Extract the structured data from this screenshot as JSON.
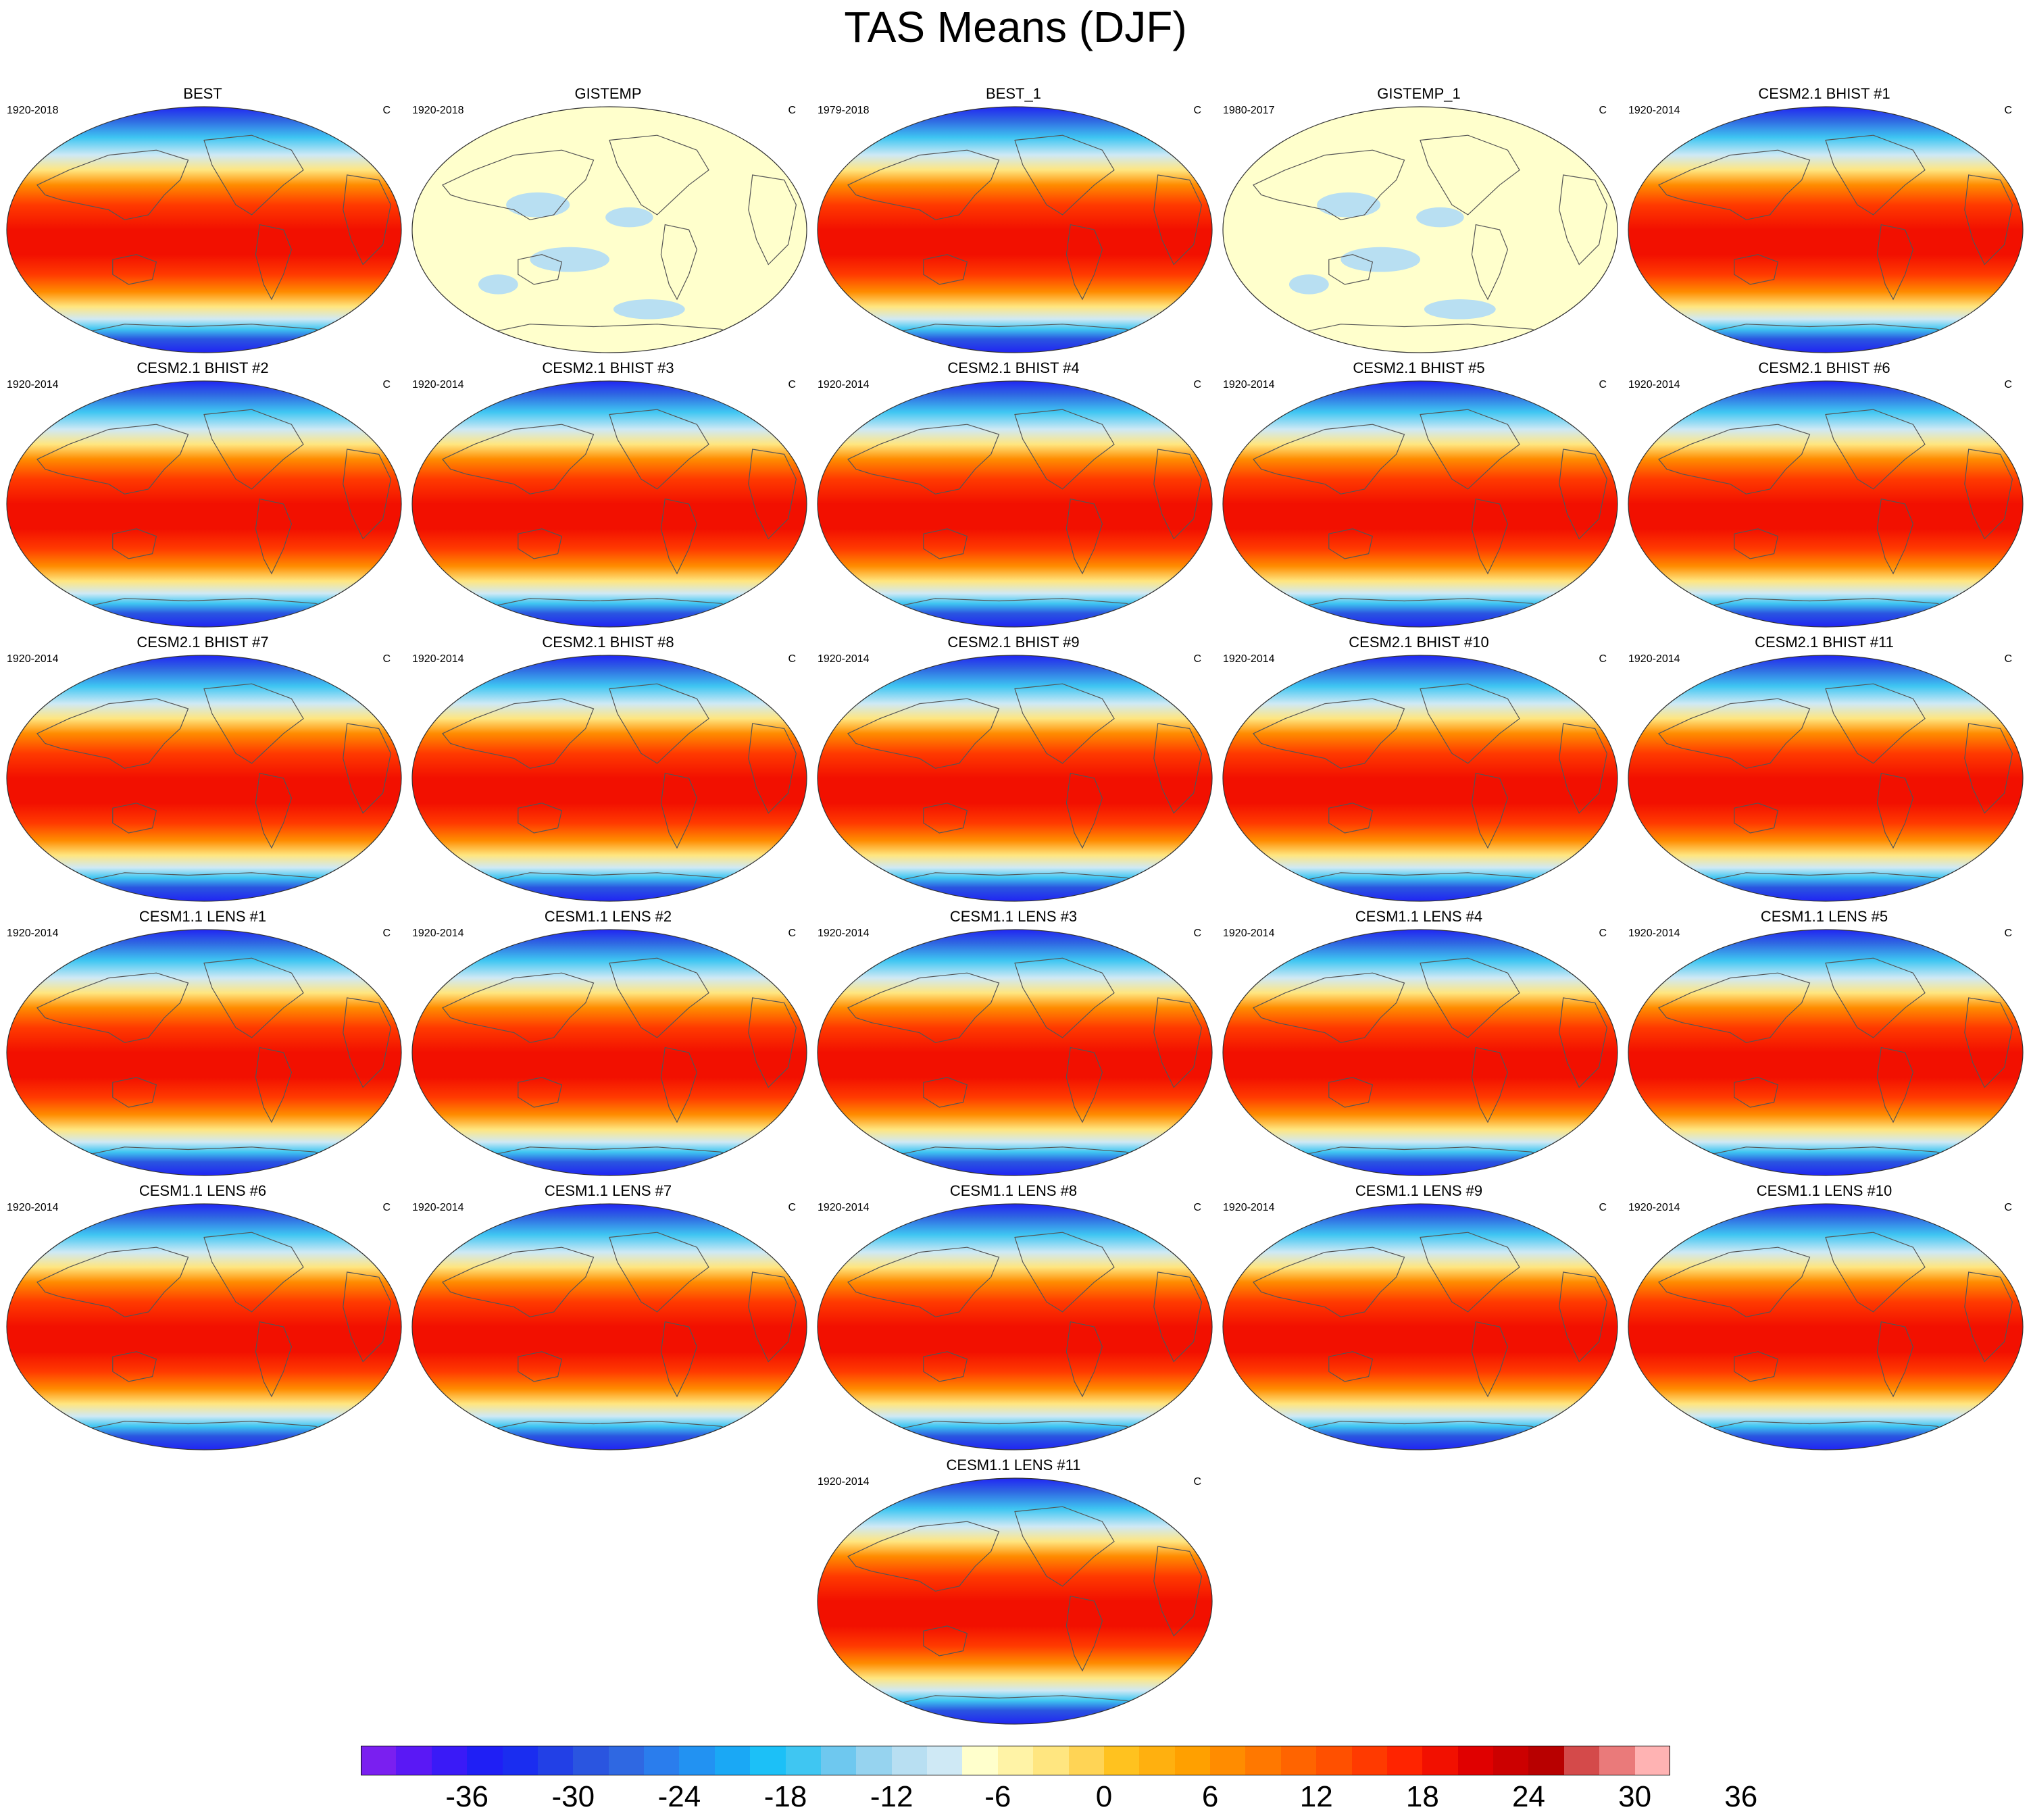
{
  "title": "TAS Means (DJF)",
  "colors": {
    "tas_palette": [
      "#7a1ff0",
      "#5a18f5",
      "#3a1af7",
      "#1f1ff5",
      "#1a2df0",
      "#2240e6",
      "#2a55e0",
      "#2f68e2",
      "#2a7ded",
      "#2292f2",
      "#1aa8f5",
      "#1cc0f7",
      "#3fc6f2",
      "#6ec8ef",
      "#96d3ef",
      "#b8dff2",
      "#cfe9f5",
      "#ffffcc",
      "#fff3a6",
      "#ffe680",
      "#ffd455",
      "#ffc21f",
      "#ffb00f",
      "#ffa000",
      "#ff8c00",
      "#ff7800",
      "#ff6400",
      "#ff5000",
      "#ff3a00",
      "#ff2400",
      "#f21000",
      "#e00000",
      "#cc0000",
      "#b80000",
      "#d44a4a",
      "#ea7a7a",
      "#ffb3b3"
    ],
    "land_outline": "#555555"
  },
  "colorbar": {
    "labels": [
      "-36",
      "-30",
      "-24",
      "-18",
      "-12",
      "-6",
      "0",
      "6",
      "12",
      "18",
      "24",
      "30",
      "36"
    ]
  },
  "panels": [
    {
      "title": "BEST",
      "period": "1920-2018",
      "unit": "C",
      "style": "climatology"
    },
    {
      "title": "GISTEMP",
      "period": "1920-2018",
      "unit": "C",
      "style": "anomaly"
    },
    {
      "title": "BEST_1",
      "period": "1979-2018",
      "unit": "C",
      "style": "climatology"
    },
    {
      "title": "GISTEMP_1",
      "period": "1980-2017",
      "unit": "C",
      "style": "anomaly"
    },
    {
      "title": "CESM2.1 BHIST #1",
      "period": "1920-2014",
      "unit": "C",
      "style": "climatology"
    },
    {
      "title": "CESM2.1 BHIST #2",
      "period": "1920-2014",
      "unit": "C",
      "style": "climatology"
    },
    {
      "title": "CESM2.1 BHIST #3",
      "period": "1920-2014",
      "unit": "C",
      "style": "climatology"
    },
    {
      "title": "CESM2.1 BHIST #4",
      "period": "1920-2014",
      "unit": "C",
      "style": "climatology"
    },
    {
      "title": "CESM2.1 BHIST #5",
      "period": "1920-2014",
      "unit": "C",
      "style": "climatology"
    },
    {
      "title": "CESM2.1 BHIST #6",
      "period": "1920-2014",
      "unit": "C",
      "style": "climatology"
    },
    {
      "title": "CESM2.1 BHIST #7",
      "period": "1920-2014",
      "unit": "C",
      "style": "climatology"
    },
    {
      "title": "CESM2.1 BHIST #8",
      "period": "1920-2014",
      "unit": "C",
      "style": "climatology"
    },
    {
      "title": "CESM2.1 BHIST #9",
      "period": "1920-2014",
      "unit": "C",
      "style": "climatology"
    },
    {
      "title": "CESM2.1 BHIST #10",
      "period": "1920-2014",
      "unit": "C",
      "style": "climatology"
    },
    {
      "title": "CESM2.1 BHIST #11",
      "period": "1920-2014",
      "unit": "C",
      "style": "climatology"
    },
    {
      "title": "CESM1.1 LENS #1",
      "period": "1920-2014",
      "unit": "C",
      "style": "climatology"
    },
    {
      "title": "CESM1.1 LENS #2",
      "period": "1920-2014",
      "unit": "C",
      "style": "climatology"
    },
    {
      "title": "CESM1.1 LENS #3",
      "period": "1920-2014",
      "unit": "C",
      "style": "climatology"
    },
    {
      "title": "CESM1.1 LENS #4",
      "period": "1920-2014",
      "unit": "C",
      "style": "climatology"
    },
    {
      "title": "CESM1.1 LENS #5",
      "period": "1920-2014",
      "unit": "C",
      "style": "climatology"
    },
    {
      "title": "CESM1.1 LENS #6",
      "period": "1920-2014",
      "unit": "C",
      "style": "climatology"
    },
    {
      "title": "CESM1.1 LENS #7",
      "period": "1920-2014",
      "unit": "C",
      "style": "climatology"
    },
    {
      "title": "CESM1.1 LENS #8",
      "period": "1920-2014",
      "unit": "C",
      "style": "climatology"
    },
    {
      "title": "CESM1.1 LENS #9",
      "period": "1920-2014",
      "unit": "C",
      "style": "climatology"
    },
    {
      "title": "CESM1.1 LENS #10",
      "period": "1920-2014",
      "unit": "C",
      "style": "climatology"
    },
    {
      "title": "CESM1.1 LENS #11",
      "period": "1920-2014",
      "unit": "C",
      "style": "climatology"
    }
  ]
}
